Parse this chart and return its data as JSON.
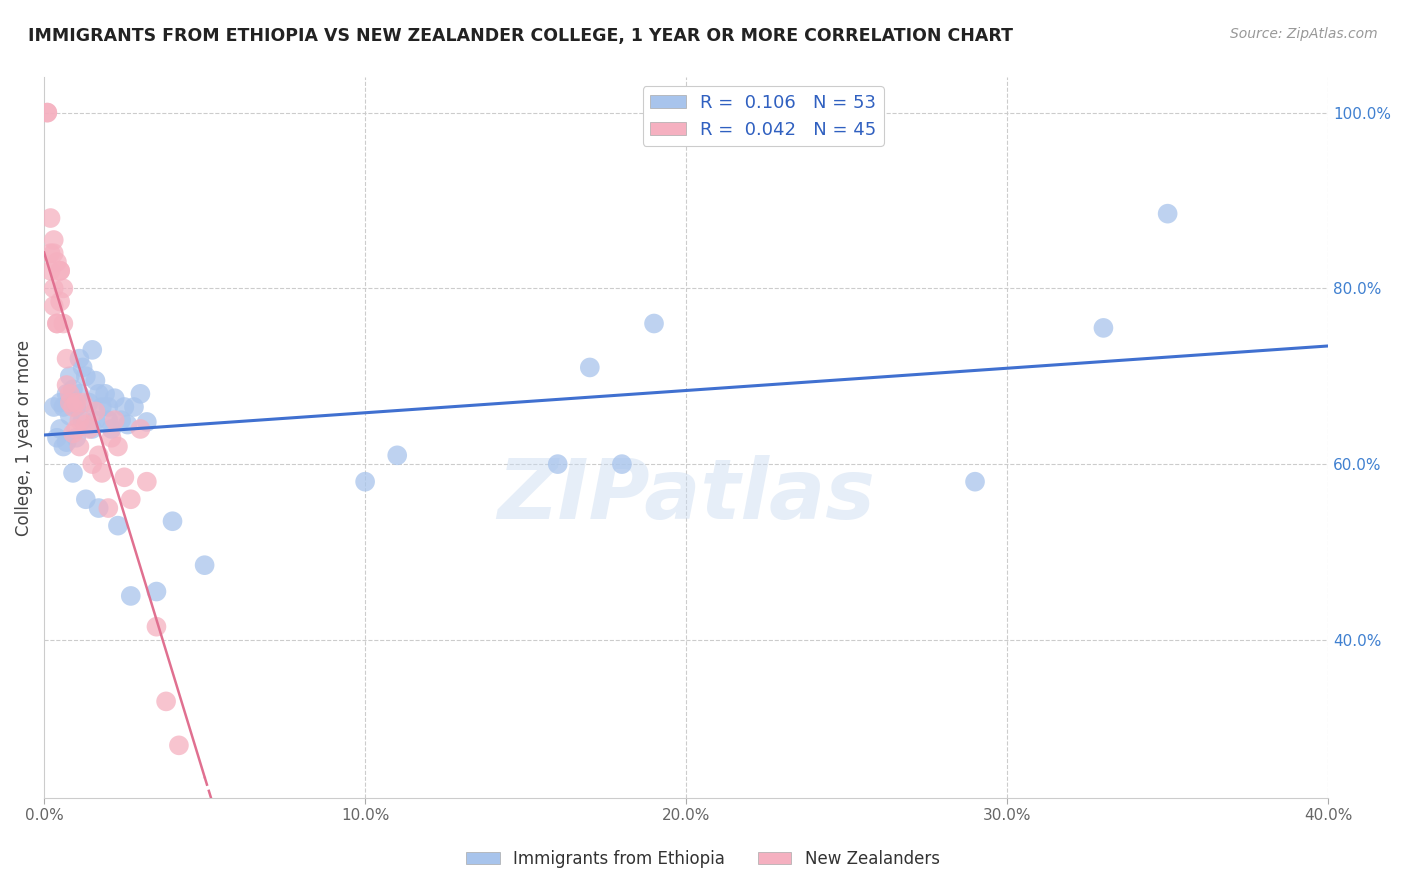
{
  "title": "IMMIGRANTS FROM ETHIOPIA VS NEW ZEALANDER COLLEGE, 1 YEAR OR MORE CORRELATION CHART",
  "source": "Source: ZipAtlas.com",
  "xlabel": "",
  "ylabel": "College, 1 year or more",
  "xlim": [
    0.0,
    0.4
  ],
  "ylim": [
    0.22,
    1.04
  ],
  "xticks": [
    0.0,
    0.1,
    0.2,
    0.3,
    0.4
  ],
  "yticks": [
    0.4,
    0.6,
    0.8,
    1.0
  ],
  "xtick_labels": [
    "0.0%",
    "10.0%",
    "20.0%",
    "30.0%",
    "40.0%"
  ],
  "ytick_labels": [
    "40.0%",
    "60.0%",
    "80.0%",
    "100.0%"
  ],
  "legend_labels": [
    "Immigrants from Ethiopia",
    "New Zealanders"
  ],
  "blue_R": "0.106",
  "blue_N": "53",
  "pink_R": "0.042",
  "pink_N": "45",
  "blue_color": "#a8c4ec",
  "pink_color": "#f5b0c0",
  "blue_line_color": "#4070d0",
  "pink_line_color": "#e07090",
  "watermark": "ZIPatlas",
  "blue_x": [
    0.003,
    0.004,
    0.005,
    0.005,
    0.006,
    0.006,
    0.007,
    0.007,
    0.008,
    0.008,
    0.009,
    0.009,
    0.01,
    0.01,
    0.011,
    0.011,
    0.012,
    0.012,
    0.013,
    0.013,
    0.014,
    0.015,
    0.015,
    0.016,
    0.016,
    0.017,
    0.017,
    0.018,
    0.019,
    0.02,
    0.02,
    0.021,
    0.022,
    0.023,
    0.024,
    0.025,
    0.026,
    0.027,
    0.028,
    0.03,
    0.032,
    0.035,
    0.04,
    0.05,
    0.1,
    0.11,
    0.16,
    0.17,
    0.18,
    0.19,
    0.29,
    0.33,
    0.35
  ],
  "blue_y": [
    0.665,
    0.63,
    0.67,
    0.64,
    0.665,
    0.62,
    0.68,
    0.625,
    0.7,
    0.655,
    0.59,
    0.685,
    0.665,
    0.63,
    0.72,
    0.68,
    0.71,
    0.65,
    0.56,
    0.7,
    0.67,
    0.64,
    0.73,
    0.695,
    0.65,
    0.68,
    0.55,
    0.665,
    0.68,
    0.65,
    0.665,
    0.64,
    0.675,
    0.53,
    0.65,
    0.665,
    0.645,
    0.45,
    0.665,
    0.68,
    0.648,
    0.455,
    0.535,
    0.485,
    0.58,
    0.61,
    0.6,
    0.71,
    0.6,
    0.76,
    0.58,
    0.755,
    0.885
  ],
  "pink_x": [
    0.001,
    0.001,
    0.002,
    0.002,
    0.002,
    0.003,
    0.003,
    0.003,
    0.003,
    0.004,
    0.004,
    0.004,
    0.005,
    0.005,
    0.005,
    0.006,
    0.006,
    0.007,
    0.007,
    0.008,
    0.008,
    0.009,
    0.009,
    0.01,
    0.01,
    0.011,
    0.011,
    0.012,
    0.013,
    0.014,
    0.015,
    0.016,
    0.017,
    0.018,
    0.02,
    0.021,
    0.022,
    0.023,
    0.025,
    0.027,
    0.03,
    0.032,
    0.035,
    0.038,
    0.042
  ],
  "pink_y": [
    1.0,
    1.0,
    0.88,
    0.84,
    0.82,
    0.855,
    0.8,
    0.78,
    0.84,
    0.83,
    0.76,
    0.76,
    0.82,
    0.785,
    0.82,
    0.8,
    0.76,
    0.72,
    0.69,
    0.67,
    0.68,
    0.665,
    0.635,
    0.67,
    0.64,
    0.65,
    0.62,
    0.67,
    0.645,
    0.64,
    0.6,
    0.66,
    0.61,
    0.59,
    0.55,
    0.63,
    0.65,
    0.62,
    0.585,
    0.56,
    0.64,
    0.58,
    0.415,
    0.33,
    0.28
  ],
  "pink_line_xmax": 0.2
}
